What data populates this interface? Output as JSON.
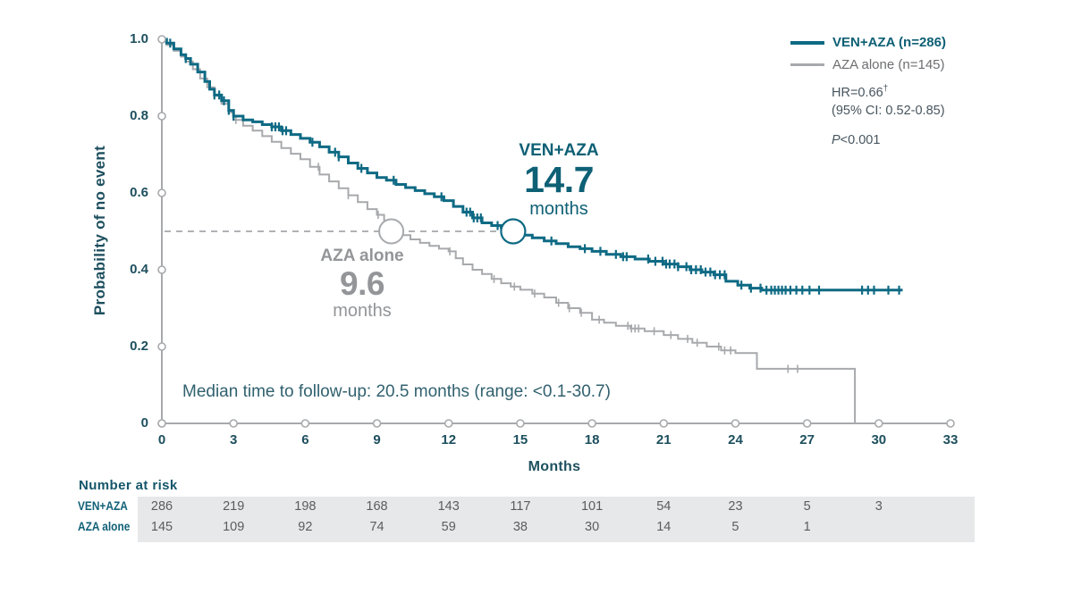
{
  "colors": {
    "teal_line": "#0e6a84",
    "teal_text": "#0e6075",
    "gray_line": "#a7a9ac",
    "gray_text": "#939598",
    "axis_text": "#1d4f5e",
    "stats_text": "#47555e",
    "table_band": "#e7e8e9",
    "dashed_line": "#b0b2b4"
  },
  "legend": {
    "series1_label": "VEN+AZA (n=286)",
    "series2_label": "AZA alone (n=145)"
  },
  "stats": {
    "hr": "HR=0.66",
    "hr_sup": "†",
    "ci": "(95% CI: 0.52-0.85)",
    "p_label": "P",
    "p_value": "<0.001"
  },
  "annotations": {
    "ven_label": "VEN+AZA",
    "ven_value": "14.7",
    "ven_unit": "months",
    "aza_label": "AZA alone",
    "aza_value": "9.6",
    "aza_unit": "months",
    "followup_note": "Median time to follow-up: 20.5 months (range: <0.1-30.7)"
  },
  "risk_table": {
    "title": "Number at risk",
    "columns_months": [
      0,
      3,
      6,
      9,
      12,
      15,
      18,
      21,
      24,
      27,
      30
    ],
    "rows": [
      {
        "label": "VEN+AZA",
        "values": [
          286,
          219,
          198,
          168,
          143,
          117,
          101,
          54,
          23,
          5,
          3
        ]
      },
      {
        "label": "AZA alone",
        "values": [
          145,
          109,
          92,
          74,
          59,
          38,
          30,
          14,
          5,
          1
        ]
      }
    ]
  },
  "chart_data": {
    "type": "line",
    "subtype": "kaplan-meier-step",
    "xlabel": "Months",
    "ylabel": "Probability of no event",
    "xlim": [
      0,
      33
    ],
    "ylim": [
      0,
      1
    ],
    "x_ticks": [
      0,
      3,
      6,
      9,
      12,
      15,
      18,
      21,
      24,
      27,
      30,
      33
    ],
    "y_tick_labels": [
      "1.0",
      "0.8",
      "0.6",
      "0.4",
      "0.2",
      "0"
    ],
    "y_tick_values": [
      1.0,
      0.8,
      0.6,
      0.4,
      0.2,
      0
    ],
    "median_line": {
      "prob": 0.5,
      "style": "dashed"
    },
    "series": [
      {
        "name": "VEN+AZA (n=286)",
        "color": "#0e6a84",
        "width": 3,
        "median_months": 14.7,
        "points": [
          [
            0,
            1.0
          ],
          [
            0.2,
            0.99
          ],
          [
            0.5,
            0.975
          ],
          [
            0.8,
            0.96
          ],
          [
            1.0,
            0.95
          ],
          [
            1.2,
            0.935
          ],
          [
            1.5,
            0.915
          ],
          [
            1.8,
            0.89
          ],
          [
            2.0,
            0.87
          ],
          [
            2.2,
            0.855
          ],
          [
            2.5,
            0.84
          ],
          [
            2.8,
            0.815
          ],
          [
            3.0,
            0.8
          ],
          [
            3.4,
            0.79
          ],
          [
            3.8,
            0.785
          ],
          [
            4.2,
            0.778
          ],
          [
            4.6,
            0.772
          ],
          [
            5.0,
            0.762
          ],
          [
            5.4,
            0.752
          ],
          [
            5.8,
            0.742
          ],
          [
            6.2,
            0.732
          ],
          [
            6.6,
            0.72
          ],
          [
            7.0,
            0.706
          ],
          [
            7.4,
            0.694
          ],
          [
            7.8,
            0.678
          ],
          [
            8.2,
            0.664
          ],
          [
            8.6,
            0.652
          ],
          [
            9.0,
            0.64
          ],
          [
            9.4,
            0.633
          ],
          [
            9.8,
            0.622
          ],
          [
            10.2,
            0.614
          ],
          [
            10.6,
            0.606
          ],
          [
            11.0,
            0.598
          ],
          [
            11.4,
            0.59
          ],
          [
            11.8,
            0.58
          ],
          [
            12.2,
            0.565
          ],
          [
            12.6,
            0.55
          ],
          [
            13.0,
            0.535
          ],
          [
            13.4,
            0.522
          ],
          [
            13.8,
            0.515
          ],
          [
            14.2,
            0.51
          ],
          [
            14.7,
            0.5
          ],
          [
            15.1,
            0.49
          ],
          [
            15.5,
            0.483
          ],
          [
            16.0,
            0.475
          ],
          [
            16.5,
            0.468
          ],
          [
            17.0,
            0.46
          ],
          [
            17.5,
            0.455
          ],
          [
            18.0,
            0.448
          ],
          [
            18.6,
            0.44
          ],
          [
            19.2,
            0.434
          ],
          [
            19.8,
            0.428
          ],
          [
            20.4,
            0.422
          ],
          [
            21.0,
            0.415
          ],
          [
            21.6,
            0.408
          ],
          [
            22.1,
            0.4
          ],
          [
            22.6,
            0.394
          ],
          [
            23.1,
            0.387
          ],
          [
            23.6,
            0.37
          ],
          [
            24.1,
            0.36
          ],
          [
            24.6,
            0.352
          ],
          [
            25.1,
            0.347
          ],
          [
            31.0,
            0.347
          ]
        ],
        "censor_months": [
          0.35,
          1.0,
          2.2,
          2.4,
          2.6,
          2.8,
          3.0,
          4.6,
          4.75,
          4.9,
          5.05,
          5.2,
          6.3,
          7.25,
          7.4,
          8.35,
          9.7,
          11.7,
          12.75,
          12.9,
          13.05,
          13.2,
          13.35,
          14.05,
          16.3,
          17.7,
          18.35,
          19.0,
          19.3,
          19.45,
          20.35,
          20.65,
          20.95,
          21.1,
          21.25,
          21.45,
          21.6,
          21.95,
          22.15,
          22.35,
          22.55,
          22.75,
          22.95,
          23.15,
          23.35,
          23.55,
          24.25,
          24.65,
          25.05,
          25.3,
          25.5,
          25.65,
          25.8,
          25.95,
          26.1,
          26.3,
          26.55,
          26.8,
          27.1,
          27.5,
          29.3,
          29.55,
          29.8,
          30.4,
          30.85
        ]
      },
      {
        "name": "AZA alone (n=145)",
        "color": "#a7a9ac",
        "width": 2,
        "median_months": 9.6,
        "points": [
          [
            0,
            1.0
          ],
          [
            0.2,
            0.985
          ],
          [
            0.5,
            0.97
          ],
          [
            0.8,
            0.955
          ],
          [
            1.0,
            0.942
          ],
          [
            1.3,
            0.922
          ],
          [
            1.6,
            0.898
          ],
          [
            1.9,
            0.875
          ],
          [
            2.2,
            0.853
          ],
          [
            2.5,
            0.832
          ],
          [
            2.8,
            0.81
          ],
          [
            3.0,
            0.79
          ],
          [
            3.4,
            0.775
          ],
          [
            3.8,
            0.762
          ],
          [
            4.2,
            0.748
          ],
          [
            4.6,
            0.733
          ],
          [
            5.0,
            0.717
          ],
          [
            5.4,
            0.702
          ],
          [
            5.8,
            0.688
          ],
          [
            6.2,
            0.668
          ],
          [
            6.6,
            0.648
          ],
          [
            7.0,
            0.63
          ],
          [
            7.4,
            0.612
          ],
          [
            7.8,
            0.594
          ],
          [
            8.2,
            0.576
          ],
          [
            8.6,
            0.558
          ],
          [
            9.0,
            0.543
          ],
          [
            9.3,
            0.528
          ],
          [
            9.6,
            0.5
          ],
          [
            10.0,
            0.49
          ],
          [
            10.4,
            0.479
          ],
          [
            10.8,
            0.47
          ],
          [
            11.2,
            0.462
          ],
          [
            11.6,
            0.455
          ],
          [
            12.0,
            0.448
          ],
          [
            12.3,
            0.43
          ],
          [
            12.6,
            0.414
          ],
          [
            13.0,
            0.4
          ],
          [
            13.4,
            0.389
          ],
          [
            13.8,
            0.376
          ],
          [
            14.2,
            0.365
          ],
          [
            14.6,
            0.356
          ],
          [
            15.0,
            0.348
          ],
          [
            15.5,
            0.338
          ],
          [
            16.0,
            0.328
          ],
          [
            16.5,
            0.314
          ],
          [
            17.0,
            0.3
          ],
          [
            17.5,
            0.288
          ],
          [
            18.0,
            0.27
          ],
          [
            18.5,
            0.262
          ],
          [
            19.0,
            0.254
          ],
          [
            19.6,
            0.247
          ],
          [
            20.2,
            0.24
          ],
          [
            21.0,
            0.23
          ],
          [
            21.6,
            0.22
          ],
          [
            22.2,
            0.21
          ],
          [
            22.8,
            0.2
          ],
          [
            23.4,
            0.19
          ],
          [
            24.0,
            0.183
          ],
          [
            24.9,
            0.142
          ],
          [
            29.0,
            0.142
          ],
          [
            29.0,
            0.0
          ]
        ],
        "censor_months": [
          3.1,
          6.55,
          7.8,
          9.05,
          12.05,
          13.9,
          14.75,
          15.6,
          16.6,
          17.05,
          17.55,
          18.3,
          19.5,
          19.65,
          19.8,
          19.95,
          20.6,
          21.3,
          22.0,
          22.4,
          23.3,
          23.55,
          23.8,
          26.2,
          26.6
        ]
      }
    ]
  }
}
